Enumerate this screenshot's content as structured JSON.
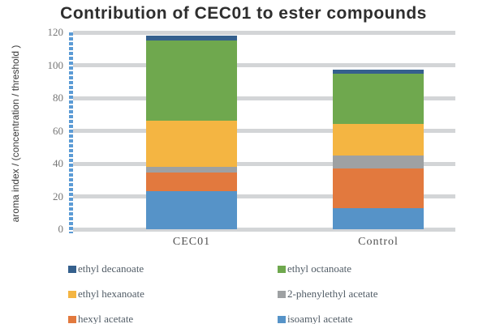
{
  "chart_data": {
    "type": "bar",
    "stacked": true,
    "title": "Contribution of CEC01 to ester compounds",
    "ylabel": "aroma index / (concentration /  threshold )",
    "xlabel": "",
    "categories": [
      "CEC01",
      "Control"
    ],
    "series": [
      {
        "name": "isoamyl acetate",
        "color": "#5693c8",
        "values": [
          23,
          13
        ]
      },
      {
        "name": "hexyl acetate",
        "color": "#e2793e",
        "values": [
          11.5,
          24
        ]
      },
      {
        "name": "2-phenylethyl acetate",
        "color": "#9ea1a3",
        "values": [
          3.5,
          8
        ]
      },
      {
        "name": "ethyl hexanoate",
        "color": "#f4b542",
        "values": [
          28,
          19
        ]
      },
      {
        "name": "ethyl octanoate",
        "color": "#6fa84e",
        "values": [
          49,
          31
        ]
      },
      {
        "name": "ethyl decanoate",
        "color": "#35608d",
        "values": [
          3,
          2.5
        ]
      }
    ],
    "ylim": [
      0,
      120
    ],
    "yticks": [
      0,
      20,
      40,
      60,
      80,
      100,
      120
    ],
    "grid": true,
    "legend_position": "bottom",
    "legend_rows": [
      [
        "ethyl decanoate",
        "ethyl octanoate"
      ],
      [
        "ethyl hexanoate",
        "2-phenylethyl acetate"
      ],
      [
        "hexyl acetate",
        "isoamyl acetate"
      ]
    ]
  },
  "colors": {
    "axis_line_blue": "#5b9bd5",
    "gridline_gray": "#d3d5d7",
    "background": "#ffffff"
  }
}
